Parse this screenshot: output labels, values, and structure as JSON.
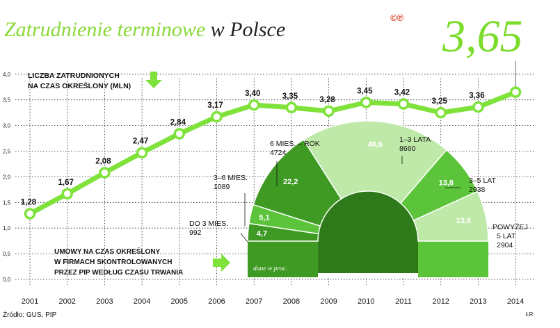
{
  "header": {
    "title_main": "Zatrudnienie terminowe",
    "title_rest": "w Polsce",
    "copyright_mark": "©℗",
    "highlight_value": "3,65"
  },
  "footer": {
    "source": "Źródło: GUS, PIP",
    "author": "ŁR"
  },
  "colors": {
    "line": "#7ee23a",
    "ring_dark": "#3f9a24",
    "ring_mid": "#5cc43a",
    "ring_light": "#bfe9a8",
    "title_green": "#8ad93b"
  },
  "chart_data": [
    {
      "type": "line",
      "title": "Liczba zatrudnionych na czas określony (mln)",
      "x": [
        "2001",
        "2002",
        "2003",
        "2004",
        "2005",
        "2006",
        "2007",
        "2008",
        "2009",
        "2010",
        "2011",
        "2012",
        "2013",
        "2014"
      ],
      "values": [
        1.28,
        1.67,
        2.08,
        2.47,
        2.84,
        3.17,
        3.4,
        3.35,
        3.28,
        3.45,
        3.42,
        3.25,
        3.36,
        3.65
      ],
      "labels": [
        "1,28",
        "1,67",
        "2,08",
        "2,47",
        "2,84",
        "3,17",
        "3,40",
        "3,35",
        "3,28",
        "3,45",
        "3,42",
        "3,25",
        "3,36",
        ""
      ],
      "ylim": [
        0,
        4.0
      ],
      "yticks": [
        "0,0",
        "0,5",
        "1,0",
        "1,5",
        "2,0",
        "2,5",
        "3,0",
        "3,5",
        "4,0"
      ],
      "grid": true
    },
    {
      "type": "pie",
      "title": "Umowy na czas określony w firmach skontrolowanych przez PIP według czasu trwania",
      "note": "dane w proc.",
      "slices": [
        {
          "name": "DO 3 MIES.",
          "count": "992",
          "value": 4.7,
          "label": "4,7"
        },
        {
          "name": "3–6 MIES.",
          "count": "1089",
          "value": 5.1,
          "label": "5,1"
        },
        {
          "name": "6 MIES. – ROK",
          "count": "4724",
          "value": 22.2,
          "label": "22,2"
        },
        {
          "name": "1–3 LATA",
          "count": "8660",
          "value": 40.6,
          "label": "40,6"
        },
        {
          "name": "3–5 LAT",
          "count": "2938",
          "value": 13.8,
          "label": "13,8"
        },
        {
          "name": "POWYŻEJ 5 LAT",
          "count": "2904",
          "value": 13.6,
          "label": "13,6"
        }
      ]
    }
  ]
}
